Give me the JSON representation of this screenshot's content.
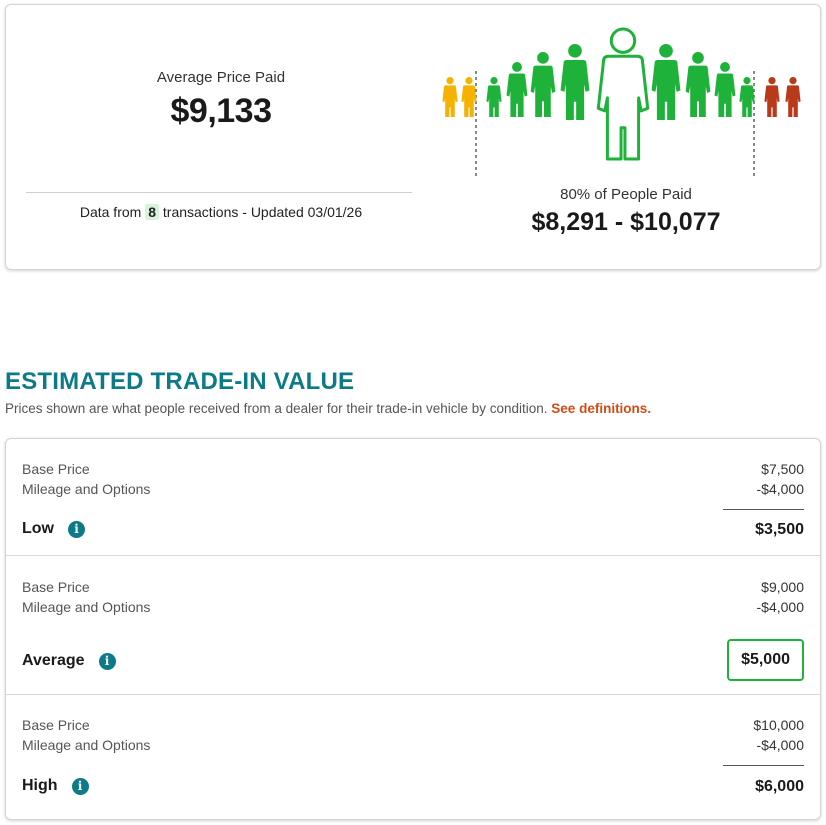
{
  "price_paid": {
    "avg_label": "Average Price Paid",
    "avg_value": "$9,133",
    "tx_prefix": "Data from",
    "tx_count": "8",
    "tx_suffix": "transactions - Updated 03/01/26",
    "range_label": "80% of People Paid",
    "range_value": "$8,291 - $10,077",
    "colors": {
      "low": "#f5b300",
      "mid": "#1fb23a",
      "high": "#b83a1a"
    }
  },
  "trade_in": {
    "title": "ESTIMATED TRADE-IN VALUE",
    "subtitle": "Prices shown are what people received from a dealer for their trade-in vehicle by condition.",
    "link": "See definitions.",
    "tiers": [
      {
        "name": "Low",
        "base_label": "Base Price",
        "base_value": "$7,500",
        "mileage_label": "Mileage and Options",
        "mileage_value": "-$4,000",
        "total": "$3,500",
        "selected": false
      },
      {
        "name": "Average",
        "base_label": "Base Price",
        "base_value": "$9,000",
        "mileage_label": "Mileage and Options",
        "mileage_value": "-$4,000",
        "total": "$5,000",
        "selected": true
      },
      {
        "name": "High",
        "base_label": "Base Price",
        "base_value": "$10,000",
        "mileage_label": "Mileage and Options",
        "mileage_value": "-$4,000",
        "total": "$6,000",
        "selected": false
      }
    ],
    "info_icon_glyph": "i"
  }
}
